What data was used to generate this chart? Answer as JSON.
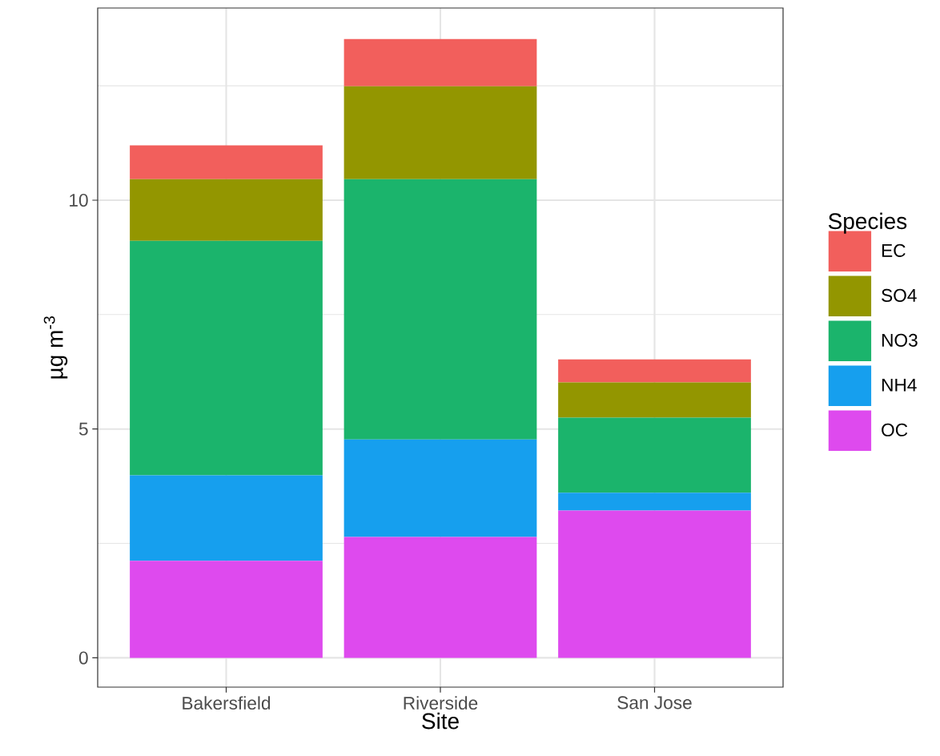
{
  "chart_data": {
    "type": "bar",
    "stacked": true,
    "xlabel": "Site",
    "ylabel": "µg m$^{-3}$",
    "legend_title": "Species",
    "legend": "right",
    "grid": true,
    "categories": [
      "Bakersfield",
      "Riverside",
      "San Jose"
    ],
    "series": [
      {
        "name": "OC",
        "color": "#de4aee",
        "values": [
          2.12,
          2.64,
          3.22
        ]
      },
      {
        "name": "NH4",
        "color": "#169fee",
        "values": [
          1.87,
          2.13,
          0.39
        ]
      },
      {
        "name": "NO3",
        "color": "#1bb46c",
        "values": [
          5.12,
          5.69,
          1.64
        ]
      },
      {
        "name": "SO4",
        "color": "#939600",
        "values": [
          1.35,
          2.03,
          0.77
        ]
      },
      {
        "name": "EC",
        "color": "#f25f5c",
        "values": [
          0.74,
          1.03,
          0.5
        ]
      }
    ],
    "ylim": [
      -0.64,
      14.2
    ],
    "yticks": [
      0,
      {
        "value": 2.5,
        "label": null
      },
      5,
      {
        "value": 7.5,
        "label": null
      },
      10,
      {
        "value": 12.5,
        "label": null
      }
    ]
  }
}
